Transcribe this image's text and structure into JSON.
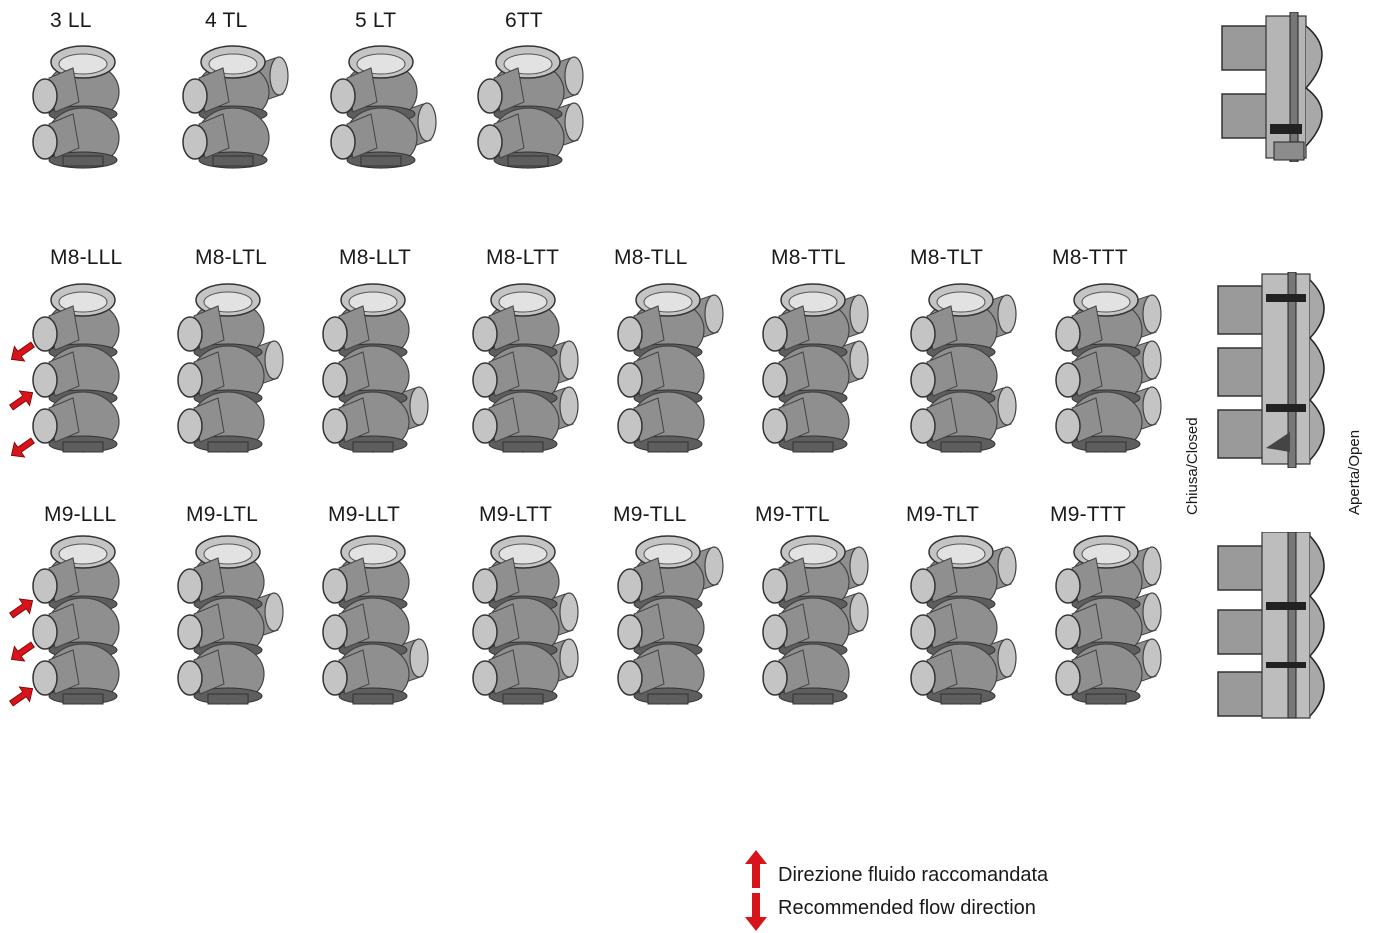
{
  "row1": {
    "labels": [
      "3 LL",
      "4 TL",
      "5 LT",
      "6TT"
    ],
    "configs": [
      "LL",
      "TL",
      "LT",
      "TT"
    ]
  },
  "row2": {
    "labels": [
      "M8-LLL",
      "M8-LTL",
      "M8-LLT",
      "M8-LTT",
      "M8-TLL",
      "M8-TTL",
      "M8-TLT",
      "M8-TTT"
    ],
    "configs": [
      "LLL",
      "LTL",
      "LLT",
      "LTT",
      "TLL",
      "TTL",
      "TLT",
      "TTT"
    ],
    "flow_arrows": [
      "out",
      "in",
      "out"
    ]
  },
  "row3": {
    "labels": [
      "M9-LLL",
      "M9-LTL",
      "M9-LLT",
      "M9-LTT",
      "M9-TLL",
      "M9-TTL",
      "M9-TLT",
      "M9-TTT"
    ],
    "configs": [
      "LLL",
      "LTL",
      "LLT",
      "LTT",
      "TLL",
      "TTL",
      "TLT",
      "TTT"
    ],
    "flow_arrows": [
      "in",
      "out",
      "in"
    ]
  },
  "section_labels": {
    "closed": "Chiusa/Closed",
    "open": "Aperta/Open"
  },
  "legend": {
    "line1": "Direzione fluido raccomandata",
    "line2": "Recommended flow direction"
  },
  "colors": {
    "body": "#8f8f8f",
    "body_dark": "#5e5e5e",
    "body_light": "#c4c4c4",
    "arrow_red": "#d7141c"
  }
}
